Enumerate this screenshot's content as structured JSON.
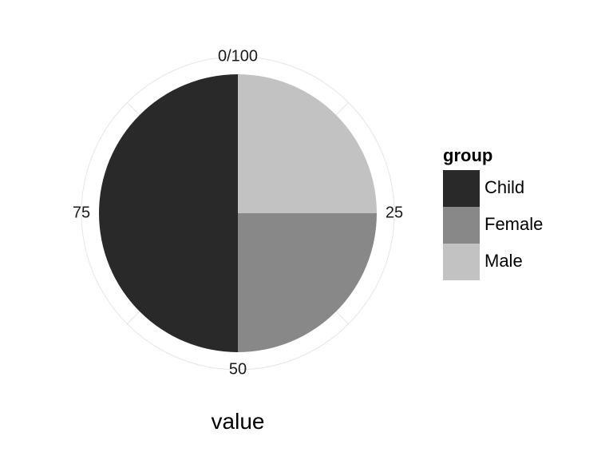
{
  "chart_data": {
    "type": "pie",
    "title": "",
    "xlabel": "value",
    "ylabel": "",
    "theta_range": [
      0,
      100
    ],
    "theta_ticks": [
      "0/100",
      "25",
      "50",
      "75"
    ],
    "y_tick_label": "",
    "legend": {
      "title": "group",
      "placement": "right"
    },
    "slices": [
      {
        "label": "Male",
        "value": 25,
        "color": "#c2c2c2"
      },
      {
        "label": "Female",
        "value": 25,
        "color": "#888888"
      },
      {
        "label": "Child",
        "value": 50,
        "color": "#292929"
      }
    ],
    "legend_order": [
      "Child",
      "Female",
      "Male"
    ],
    "grid": true
  }
}
